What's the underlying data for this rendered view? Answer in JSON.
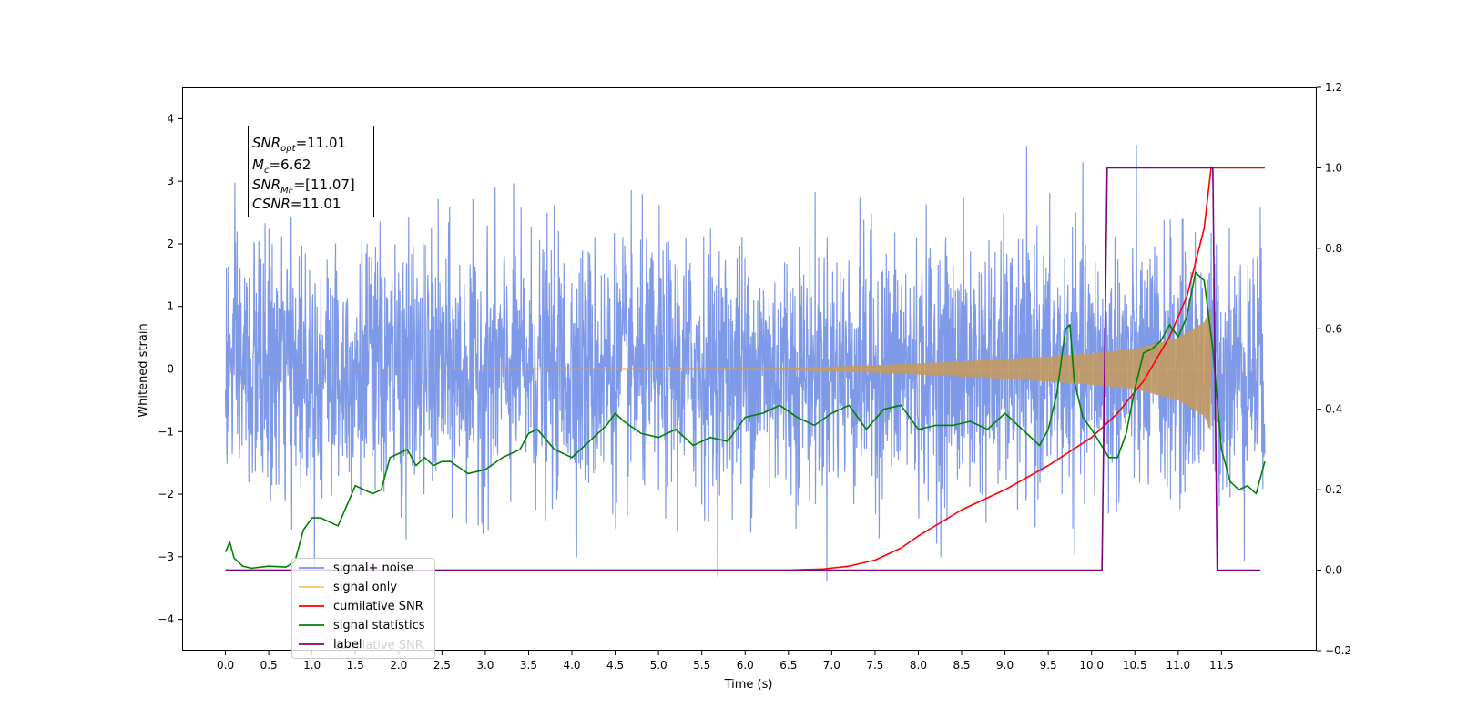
{
  "chart_data": {
    "type": "line",
    "xlabel": "Time (s)",
    "ylabel": "Whitened strain",
    "xlim": [
      -0.5,
      12.6
    ],
    "ylim": [
      -4.5,
      4.5
    ],
    "y2lim": [
      -0.2,
      1.2
    ],
    "grid": false,
    "legend_position": "lower-left",
    "x_ticks": [
      "0.0",
      "0.5",
      "1.0",
      "1.5",
      "2.0",
      "2.5",
      "3.0",
      "3.5",
      "4.0",
      "4.5",
      "5.0",
      "5.5",
      "6.0",
      "6.5",
      "7.0",
      "7.5",
      "8.0",
      "8.5",
      "9.0",
      "9.5",
      "10.0",
      "10.5",
      "11.0",
      "11.5"
    ],
    "y_ticks": [
      "−4",
      "−3",
      "−2",
      "−1",
      "0",
      "1",
      "2",
      "3",
      "4"
    ],
    "y2_ticks": [
      "−0.2",
      "0.0",
      "0.2",
      "0.4",
      "0.6",
      "0.8",
      "1.0",
      "1.2"
    ],
    "annotation": {
      "snr_opt": {
        "main": "SNR",
        "sub": "opt",
        "value": "=11.01"
      },
      "mc": {
        "main": "M",
        "sub": "c",
        "value": "=6.62"
      },
      "snr_mf": {
        "main": "SNR",
        "sub": "MF",
        "value": "=[11.07]"
      },
      "csnr": {
        "main": "CSNR",
        "value": "=11.01"
      }
    },
    "series": [
      {
        "name": "signal+ noise",
        "color": "#7793e6",
        "axis": "left",
        "t_start": 0.0,
        "t_end": 12.0,
        "noise_std": 1.0
      },
      {
        "name": "signal only",
        "color": "#ffb347",
        "axis": "left",
        "chirp": {
          "t_end": 11.38,
          "envelope": [
            [
              0.0,
              0.0
            ],
            [
              6.5,
              0.02
            ],
            [
              7.5,
              0.06
            ],
            [
              8.5,
              0.12
            ],
            [
              9.5,
              0.2
            ],
            [
              10.0,
              0.25
            ],
            [
              10.5,
              0.32
            ],
            [
              11.0,
              0.5
            ],
            [
              11.3,
              0.75
            ],
            [
              11.38,
              1.0
            ]
          ]
        }
      },
      {
        "name": "cumilative SNR",
        "color": "#ff0000",
        "axis": "right",
        "x": [
          0.0,
          5.0,
          6.5,
          6.9,
          7.2,
          7.5,
          7.8,
          8.0,
          8.5,
          9.0,
          9.5,
          10.0,
          10.3,
          10.6,
          10.9,
          11.1,
          11.3,
          11.38,
          11.45,
          12.0
        ],
        "y": [
          0.0,
          0.0,
          0.0,
          0.003,
          0.01,
          0.025,
          0.055,
          0.085,
          0.15,
          0.2,
          0.26,
          0.33,
          0.39,
          0.47,
          0.58,
          0.68,
          0.85,
          1.0,
          1.0,
          1.0
        ]
      },
      {
        "name": "signal statistics",
        "color": "#008000",
        "axis": "right",
        "x": [
          0.0,
          0.05,
          0.1,
          0.2,
          0.3,
          0.5,
          0.7,
          0.8,
          0.9,
          1.0,
          1.1,
          1.3,
          1.4,
          1.5,
          1.6,
          1.7,
          1.8,
          1.9,
          2.0,
          2.1,
          2.2,
          2.3,
          2.4,
          2.5,
          2.6,
          2.8,
          3.0,
          3.2,
          3.4,
          3.5,
          3.6,
          3.8,
          4.0,
          4.2,
          4.4,
          4.5,
          4.6,
          4.8,
          5.0,
          5.2,
          5.4,
          5.6,
          5.8,
          6.0,
          6.2,
          6.4,
          6.6,
          6.8,
          7.0,
          7.2,
          7.4,
          7.6,
          7.8,
          8.0,
          8.2,
          8.4,
          8.6,
          8.8,
          9.0,
          9.2,
          9.4,
          9.5,
          9.6,
          9.7,
          9.75,
          9.8,
          9.9,
          10.0,
          10.2,
          10.3,
          10.4,
          10.5,
          10.6,
          10.7,
          10.8,
          10.9,
          11.0,
          11.1,
          11.2,
          11.3,
          11.4,
          11.5,
          11.6,
          11.7,
          11.8,
          11.9,
          12.0
        ],
        "y": [
          0.045,
          0.07,
          0.03,
          0.01,
          0.005,
          0.01,
          0.008,
          0.02,
          0.1,
          0.13,
          0.13,
          0.11,
          0.16,
          0.21,
          0.2,
          0.19,
          0.2,
          0.28,
          0.29,
          0.3,
          0.26,
          0.28,
          0.26,
          0.27,
          0.27,
          0.24,
          0.25,
          0.28,
          0.3,
          0.34,
          0.35,
          0.3,
          0.28,
          0.32,
          0.36,
          0.39,
          0.37,
          0.34,
          0.33,
          0.35,
          0.31,
          0.33,
          0.32,
          0.38,
          0.39,
          0.41,
          0.38,
          0.36,
          0.39,
          0.41,
          0.35,
          0.4,
          0.41,
          0.35,
          0.36,
          0.36,
          0.37,
          0.35,
          0.39,
          0.35,
          0.31,
          0.35,
          0.44,
          0.6,
          0.61,
          0.47,
          0.38,
          0.35,
          0.28,
          0.28,
          0.34,
          0.45,
          0.54,
          0.55,
          0.57,
          0.61,
          0.58,
          0.63,
          0.74,
          0.72,
          0.55,
          0.3,
          0.22,
          0.2,
          0.21,
          0.19,
          0.27
        ]
      },
      {
        "name": "label",
        "color": "#800080",
        "axis": "right",
        "x": [
          0.0,
          10.12,
          10.18,
          11.4,
          11.45,
          11.95
        ],
        "y": [
          0.0,
          0.0,
          1.0,
          1.0,
          0.0,
          0.0
        ]
      }
    ],
    "legend_overlap_text": "cumilative SNR"
  }
}
